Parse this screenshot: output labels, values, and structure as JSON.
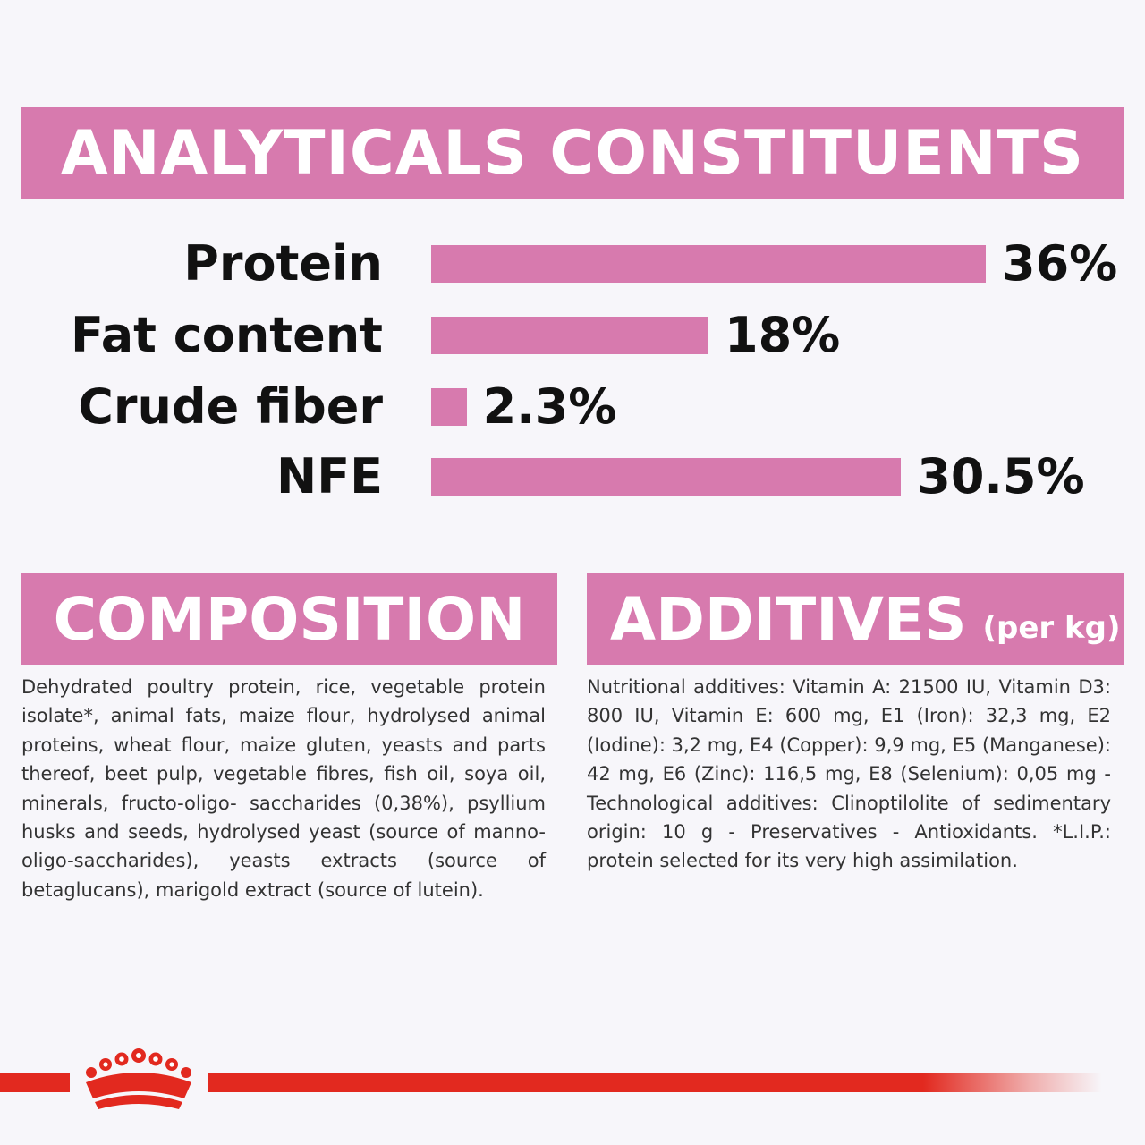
{
  "analytics": {
    "title": "ANALYTICALS CONSTITUENTS",
    "rows": [
      {
        "label": "Protein",
        "value_text": "36%",
        "value": 36
      },
      {
        "label": "Fat content",
        "value_text": "18%",
        "value": 18
      },
      {
        "label": "Crude fiber",
        "value_text": "2.3%",
        "value": 2.3
      },
      {
        "label": "NFE",
        "value_text": "30.5%",
        "value": 30.5
      }
    ]
  },
  "composition": {
    "title": "COMPOSITION",
    "text": "Dehydrated poultry protein, rice, vegetable protein isolate*, animal fats, maize flour, hydrolysed animal proteins, wheat flour, maize gluten, yeasts and parts thereof, beet pulp, vegetable fibres, fish oil, soya oil, minerals, fructo-oligo- saccharides (0,38%), psyllium husks and seeds, hydrolysed yeast (source of manno-oligo-saccharides), yeasts extracts (source of betaglucans), marigold extract (source of lutein)."
  },
  "additives": {
    "title": "ADDITIVES",
    "unit": "(per kg)",
    "text": "Nutritional additives: Vitamin A: 21500 IU, Vitamin D3: 800 IU, Vitamin E: 600 mg, E1 (Iron): 32,3 mg, E2 (Iodine): 3,2 mg, E4 (Copper): 9,9 mg, E5 (Manganese): 42 mg, E6 (Zinc): 116,5 mg, E8 (Selenium): 0,05 mg - Technological additives: Clinoptilolite of sedimentary origin: 10 g - Preservatives - Antioxidants. *L.I.P.: protein selected for its very high assimilation."
  },
  "colors": {
    "accent_pink": "#d77aae",
    "brand_red": "#e2291f",
    "text": "#111111",
    "background": "#f7f6fa"
  },
  "icons": {
    "logo": "crown-logo-icon"
  }
}
